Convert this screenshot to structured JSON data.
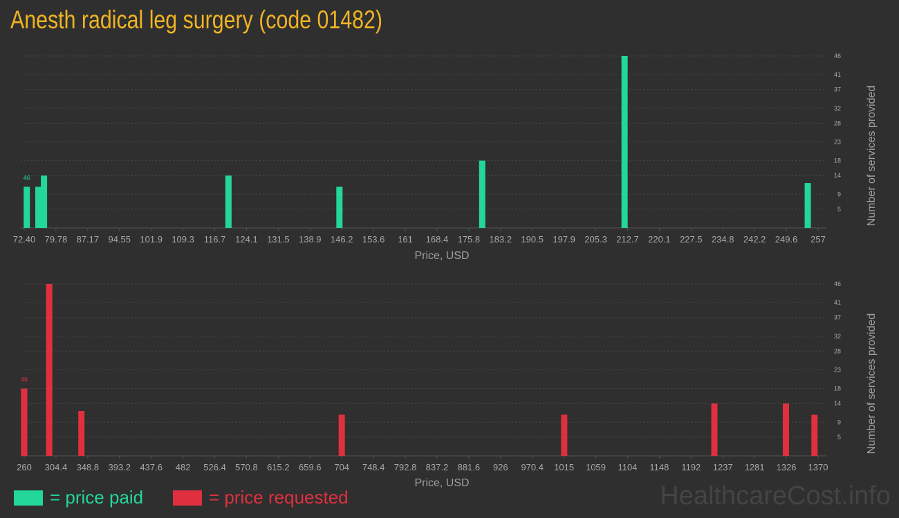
{
  "title": "Anesth radical leg surgery (code 01482)",
  "colors": {
    "paid": "#23d699",
    "requested": "#e0303f",
    "title": "#f0b323",
    "background": "#2f2f2f"
  },
  "chart_data": [
    {
      "type": "bar",
      "name": "price paid",
      "color": "#23d699",
      "xlabel": "Price, USD",
      "ylabel": "Number of services provided",
      "xlim": [
        72.4,
        257
      ],
      "ylim": [
        0,
        46
      ],
      "xticks": [
        "72.40",
        "79.78",
        "87.17",
        "94.55",
        "101.9",
        "109.3",
        "116.7",
        "124.1",
        "131.5",
        "138.9",
        "146.2",
        "153.6",
        "161",
        "168.4",
        "175.8",
        "183.2",
        "190.5",
        "197.9",
        "205.3",
        "212.7",
        "220.1",
        "227.5",
        "234.8",
        "242.2",
        "249.6",
        "257"
      ],
      "yticks": [
        5,
        9,
        14,
        18,
        23,
        28,
        32,
        37,
        41,
        46
      ],
      "bars": [
        {
          "x": 73.0,
          "y": 11
        },
        {
          "x": 75.7,
          "y": 11
        },
        {
          "x": 77.0,
          "y": 14
        },
        {
          "x": 119.9,
          "y": 14
        },
        {
          "x": 145.7,
          "y": 11
        },
        {
          "x": 178.9,
          "y": 18
        },
        {
          "x": 212.0,
          "y": 46
        },
        {
          "x": 254.6,
          "y": 12
        }
      ],
      "peak_label": "46",
      "grid": true
    },
    {
      "type": "bar",
      "name": "price requested",
      "color": "#e0303f",
      "xlabel": "Price, USD",
      "ylabel": "Number of services provided",
      "xlim": [
        260,
        1370
      ],
      "ylim": [
        0,
        46
      ],
      "xticks": [
        "260",
        "304.4",
        "348.8",
        "393.2",
        "437.6",
        "482",
        "526.4",
        "570.8",
        "615.2",
        "659.6",
        "704",
        "748.4",
        "792.8",
        "837.2",
        "881.6",
        "926",
        "970.4",
        "1015",
        "1059",
        "1104",
        "1148",
        "1192",
        "1237",
        "1281",
        "1326",
        "1370"
      ],
      "yticks": [
        5,
        9,
        14,
        18,
        23,
        28,
        32,
        37,
        41,
        46
      ],
      "bars": [
        {
          "x": 260,
          "y": 18
        },
        {
          "x": 295,
          "y": 46
        },
        {
          "x": 340,
          "y": 12
        },
        {
          "x": 704,
          "y": 11
        },
        {
          "x": 1015,
          "y": 11
        },
        {
          "x": 1225,
          "y": 14
        },
        {
          "x": 1325,
          "y": 14
        },
        {
          "x": 1365,
          "y": 11
        }
      ],
      "peak_label": "46",
      "grid": true
    }
  ],
  "legend": {
    "paid_label": "= price paid",
    "requested_label": "= price requested"
  },
  "watermark": "HealthcareCost.info"
}
